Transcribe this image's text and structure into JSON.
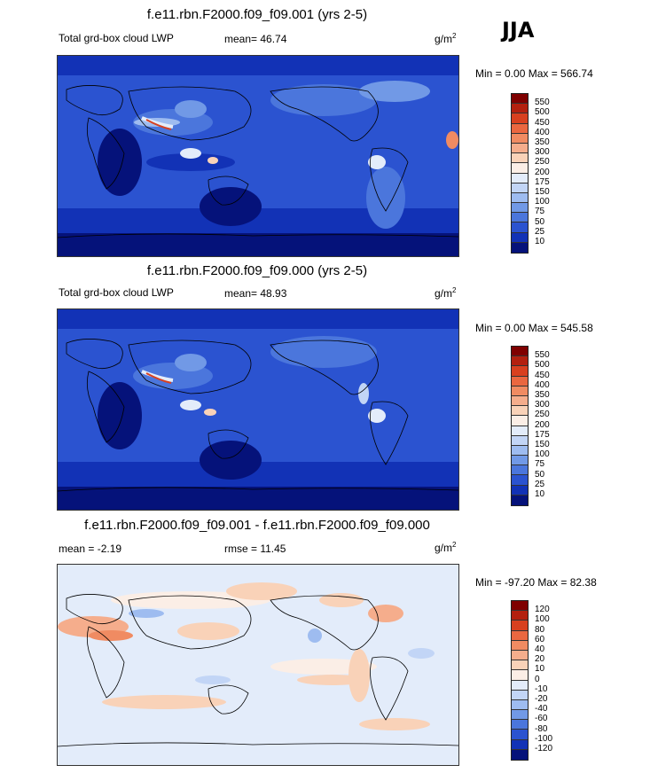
{
  "season": "JJA",
  "panels": [
    {
      "title": "f.e11.rbn.F2000.f09_f09.001 (yrs 2-5)",
      "left_label": "Total grd-box cloud LWP",
      "mid_label": "mean=  46.74",
      "unit_base": "g/m",
      "unit_exp": "2",
      "minmax": "Min =   0.00 Max = 566.74",
      "colorbar": {
        "levels": [
          "550",
          "500",
          "450",
          "400",
          "350",
          "300",
          "250",
          "200",
          "175",
          "150",
          "100",
          "75",
          "50",
          "25",
          "10"
        ],
        "colors": [
          "#7f0000",
          "#b3200f",
          "#d8401f",
          "#ea6740",
          "#f08b62",
          "#f5ad8c",
          "#f9d2b8",
          "#fbeee6",
          "#e3ecfa",
          "#c2d5f6",
          "#9ebcf0",
          "#7199e6",
          "#4b76dc",
          "#2b53d0",
          "#1232b6",
          "#05127a"
        ]
      }
    },
    {
      "title": "f.e11.rbn.F2000.f09_f09.000 (yrs 2-5)",
      "left_label": "Total grd-box cloud LWP",
      "mid_label": "mean=  48.93",
      "unit_base": "g/m",
      "unit_exp": "2",
      "minmax": "Min =   0.00 Max = 545.58",
      "colorbar": {
        "levels": [
          "550",
          "500",
          "450",
          "400",
          "350",
          "300",
          "250",
          "200",
          "175",
          "150",
          "100",
          "75",
          "50",
          "25",
          "10"
        ],
        "colors": [
          "#7f0000",
          "#b3200f",
          "#d8401f",
          "#ea6740",
          "#f08b62",
          "#f5ad8c",
          "#f9d2b8",
          "#fbeee6",
          "#e3ecfa",
          "#c2d5f6",
          "#9ebcf0",
          "#7199e6",
          "#4b76dc",
          "#2b53d0",
          "#1232b6",
          "#05127a"
        ]
      }
    },
    {
      "title": "f.e11.rbn.F2000.f09_f09.001 - f.e11.rbn.F2000.f09_f09.000",
      "left_label": "mean =  -2.19",
      "mid_label": "rmse =  11.45",
      "unit_base": "g/m",
      "unit_exp": "2",
      "minmax": "Min = -97.20 Max =  82.38",
      "colorbar": {
        "levels": [
          "120",
          "100",
          "80",
          "60",
          "40",
          "20",
          "10",
          "0",
          "-10",
          "-20",
          "-40",
          "-60",
          "-80",
          "-100",
          "-120"
        ],
        "colors": [
          "#7f0000",
          "#b3200f",
          "#d8401f",
          "#ea6740",
          "#f08b62",
          "#f5ad8c",
          "#f9d2b8",
          "#fbeee6",
          "#e3ecfa",
          "#c2d5f6",
          "#9ebcf0",
          "#7199e6",
          "#4b76dc",
          "#2b53d0",
          "#1232b6",
          "#05127a"
        ]
      }
    }
  ]
}
